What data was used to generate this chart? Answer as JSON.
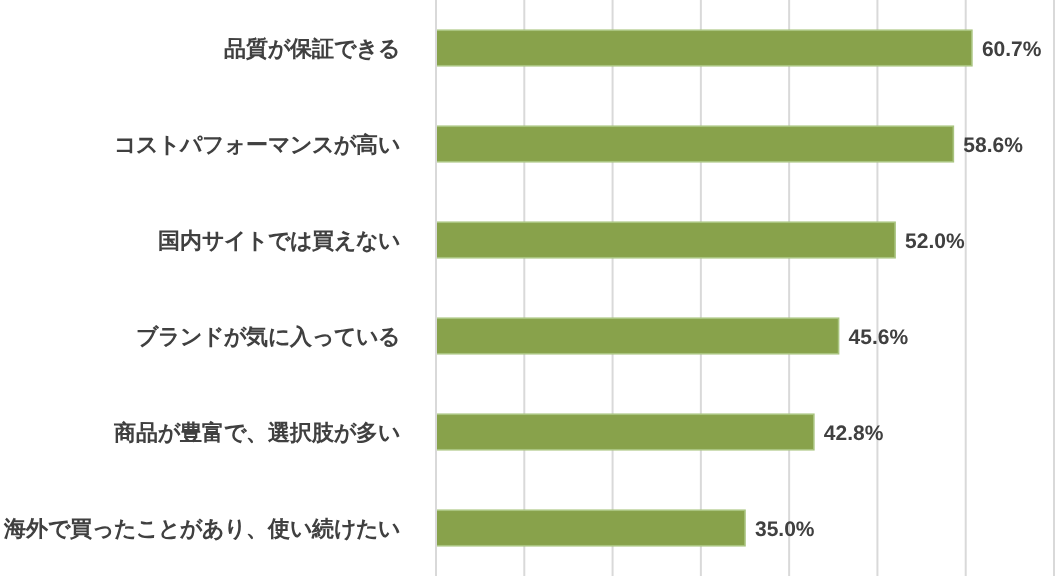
{
  "chart_data": {
    "type": "bar",
    "orientation": "horizontal",
    "categories": [
      "品質が保証できる",
      "コストパフォーマンスが高い",
      "国内サイトでは買えない",
      "ブランドが気に入っている",
      "商品が豊富で、選択肢が多い",
      "海外で買ったことがあり、使い続けたい"
    ],
    "values": [
      60.7,
      58.6,
      52.0,
      45.6,
      42.8,
      35.0
    ],
    "value_labels": [
      "60.7%",
      "58.6%",
      "52.0%",
      "45.6%",
      "42.8%",
      "35.0%"
    ],
    "color": "#88a24b",
    "xlim": [
      0,
      70
    ],
    "xticks": [
      {
        "value": 0,
        "label": null
      },
      {
        "value": 10,
        "label": null
      },
      {
        "value": 20,
        "label": null
      },
      {
        "value": 30,
        "label": null
      },
      {
        "value": 40,
        "label": null
      },
      {
        "value": 50,
        "label": null
      },
      {
        "value": 60,
        "label": null
      },
      {
        "value": 70,
        "label": null
      }
    ],
    "grid": "x",
    "tick_labels": "y"
  }
}
